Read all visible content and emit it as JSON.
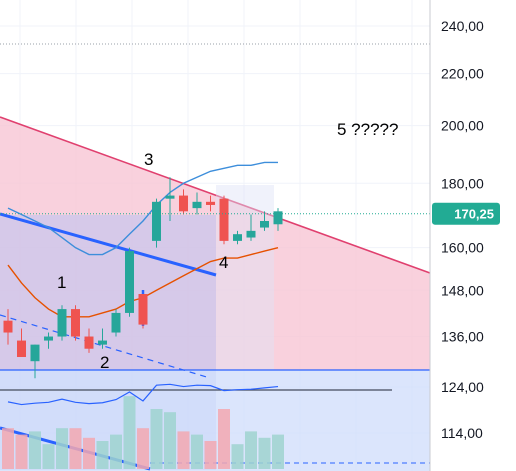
{
  "chart_data": {
    "type": "candlestick",
    "title": "",
    "xlabel": "",
    "ylabel": "",
    "y_scale": "log",
    "ylim": [
      106,
      255
    ],
    "grid": true,
    "y_ticks": [
      {
        "value": 240,
        "label": "240,00"
      },
      {
        "value": 220,
        "label": "220,00"
      },
      {
        "value": 200,
        "label": "200,00"
      },
      {
        "value": 180,
        "label": "180,00"
      },
      {
        "value": 160,
        "label": "160,00"
      },
      {
        "value": 148,
        "label": "148,00"
      },
      {
        "value": 136,
        "label": "136,00"
      },
      {
        "value": 124,
        "label": "124,00"
      },
      {
        "value": 114,
        "label": "114,00"
      }
    ],
    "last_price": {
      "value": 170.25,
      "label": "170,25"
    },
    "candles": [
      {
        "o": 140,
        "h": 143,
        "l": 134,
        "c": 137
      },
      {
        "o": 135,
        "h": 138,
        "l": 131,
        "c": 131
      },
      {
        "o": 130,
        "h": 134,
        "l": 126,
        "c": 134
      },
      {
        "o": 135,
        "h": 137,
        "l": 133,
        "c": 136
      },
      {
        "o": 136,
        "h": 144,
        "l": 135,
        "c": 143
      },
      {
        "o": 143,
        "h": 144,
        "l": 135,
        "c": 136
      },
      {
        "o": 136,
        "h": 138,
        "l": 132,
        "c": 133
      },
      {
        "o": 134,
        "h": 138,
        "l": 133,
        "c": 135
      },
      {
        "o": 137,
        "h": 143,
        "l": 136,
        "c": 142
      },
      {
        "o": 142,
        "h": 160,
        "l": 141,
        "c": 159
      },
      {
        "o": 147,
        "h": 147,
        "l": 138,
        "c": 139
      },
      {
        "o": 162,
        "h": 175,
        "l": 160,
        "c": 174
      },
      {
        "o": 175,
        "h": 182,
        "l": 168,
        "c": 176
      },
      {
        "o": 176,
        "h": 178,
        "l": 170,
        "c": 171
      },
      {
        "o": 172,
        "h": 177,
        "l": 170,
        "c": 174
      },
      {
        "o": 174,
        "h": 176,
        "l": 171,
        "c": 173
      },
      {
        "o": 175,
        "h": 176,
        "l": 161,
        "c": 162
      },
      {
        "o": 162,
        "h": 165,
        "l": 161,
        "c": 164
      },
      {
        "o": 163,
        "h": 170,
        "l": 162,
        "c": 165
      },
      {
        "o": 166,
        "h": 171,
        "l": 165,
        "c": 168
      },
      {
        "o": 167,
        "h": 172,
        "l": 165,
        "c": 171
      }
    ],
    "moving_average_orange": [
      155,
      150,
      146,
      143,
      141,
      141,
      141,
      142,
      143,
      145,
      146,
      148,
      150,
      152,
      154,
      156,
      157,
      157,
      158,
      159,
      160
    ],
    "bollinger_upper_blue": [
      172,
      170,
      168,
      166,
      163,
      160,
      158,
      158,
      160,
      164,
      168,
      173,
      177,
      180,
      182,
      184,
      185,
      186,
      186,
      187,
      187
    ],
    "annotations": [
      {
        "text": "1"
      },
      {
        "text": "2"
      },
      {
        "text": "3"
      },
      {
        "text": "4"
      },
      {
        "text": "5 ?????"
      }
    ]
  },
  "colors": {
    "up": "#26a69a",
    "down": "#ef5350",
    "price_tag": "#22ab94",
    "channel_line": "#e0406f",
    "channel_fill": "#f8c6d4",
    "trend_blue": "#2962ff",
    "ma": "#e65100",
    "upper_band": "#3d8edb"
  }
}
